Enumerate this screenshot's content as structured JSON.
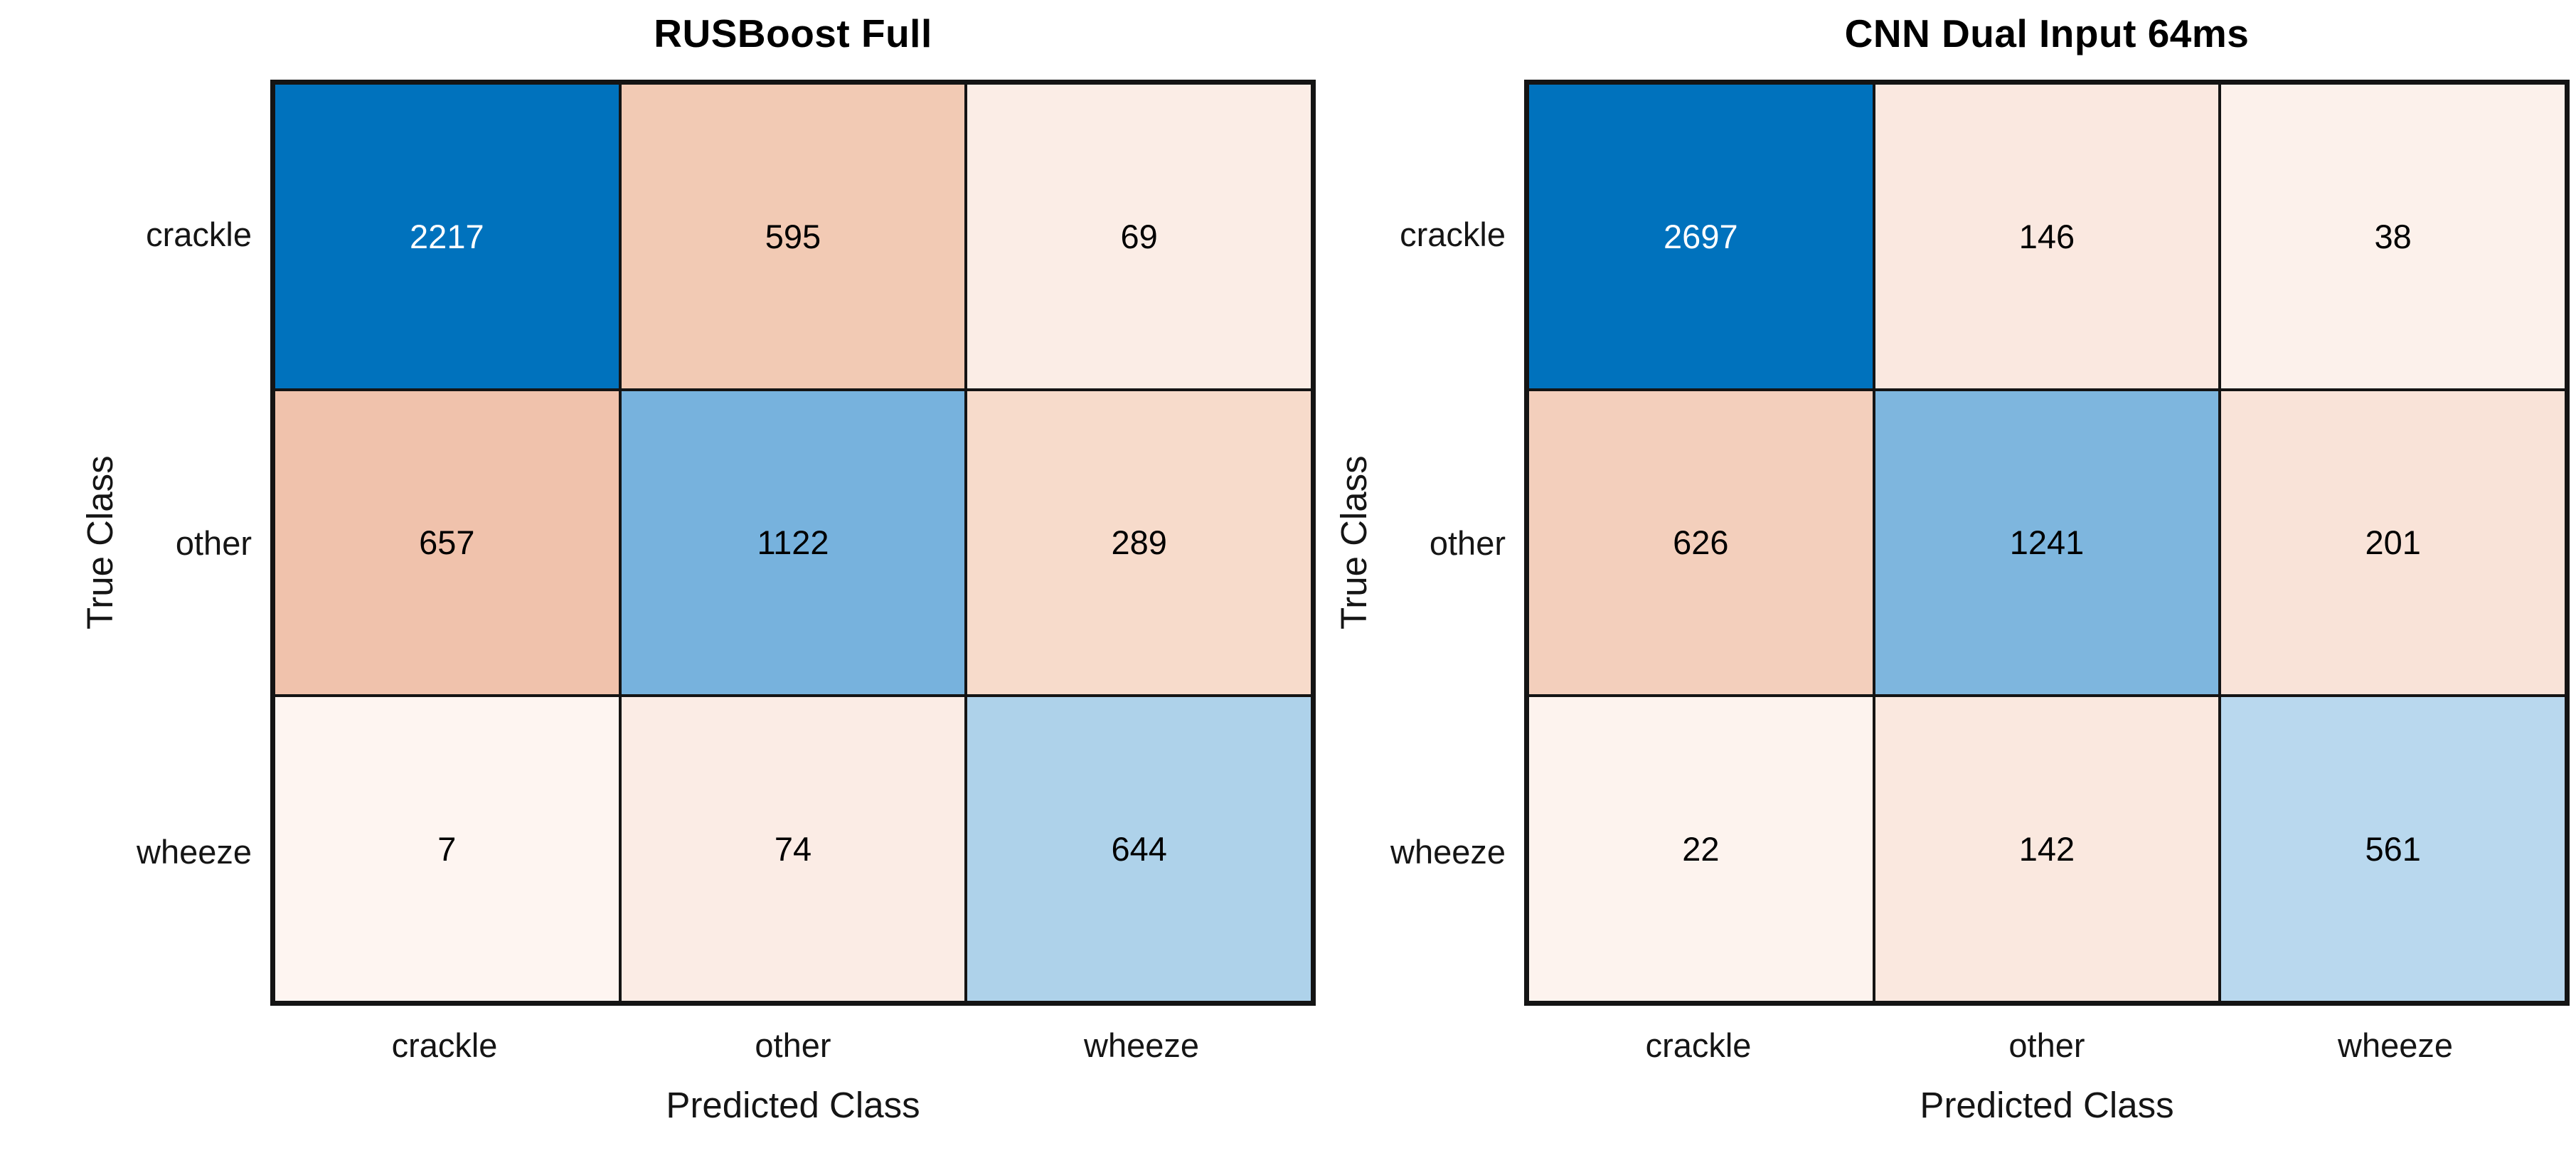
{
  "page": {
    "background": "#FFFFFF"
  },
  "styles": {
    "grid_line_color": "#141414",
    "diagonal_max_blue": "#0072BD",
    "label_text_color": "#151515"
  },
  "chart_data": [
    {
      "type": "heatmap",
      "title": "RUSBoost Full",
      "xlabel": "Predicted Class",
      "ylabel": "True Class",
      "x_categories": [
        "crackle",
        "other",
        "wheeze"
      ],
      "y_categories": [
        "crackle",
        "other",
        "wheeze"
      ],
      "values": [
        [
          2217,
          595,
          69
        ],
        [
          657,
          1122,
          289
        ],
        [
          7,
          74,
          644
        ]
      ],
      "cell_colors": [
        [
          "#0072BD",
          "#F2CAB4",
          "#FBEDE6"
        ],
        [
          "#F0C2AC",
          "#77B2DD",
          "#F7DBCB"
        ],
        [
          "#FEF5F1",
          "#FBECE5",
          "#AED2EA"
        ]
      ],
      "text_colors": [
        [
          "#FFFFFF",
          "#000000",
          "#000000"
        ],
        [
          "#000000",
          "#000000",
          "#000000"
        ],
        [
          "#000000",
          "#000000",
          "#000000"
        ]
      ],
      "legend": "none",
      "grid": "on"
    },
    {
      "type": "heatmap",
      "title": "CNN Dual Input 64ms",
      "xlabel": "Predicted Class",
      "ylabel": "True Class",
      "x_categories": [
        "crackle",
        "other",
        "wheeze"
      ],
      "y_categories": [
        "crackle",
        "other",
        "wheeze"
      ],
      "values": [
        [
          2697,
          146,
          38
        ],
        [
          626,
          1241,
          201
        ],
        [
          22,
          142,
          561
        ]
      ],
      "cell_colors": [
        [
          "#0072BD",
          "#FAE8E0",
          "#FCF1EB"
        ],
        [
          "#F3CFBC",
          "#7EB6DE",
          "#F9E3D8"
        ],
        [
          "#FDF3EE",
          "#FAE8DF",
          "#B9D8EE"
        ]
      ],
      "text_colors": [
        [
          "#FFFFFF",
          "#000000",
          "#000000"
        ],
        [
          "#000000",
          "#000000",
          "#000000"
        ],
        [
          "#000000",
          "#000000",
          "#000000"
        ]
      ],
      "legend": "none",
      "grid": "on"
    }
  ]
}
